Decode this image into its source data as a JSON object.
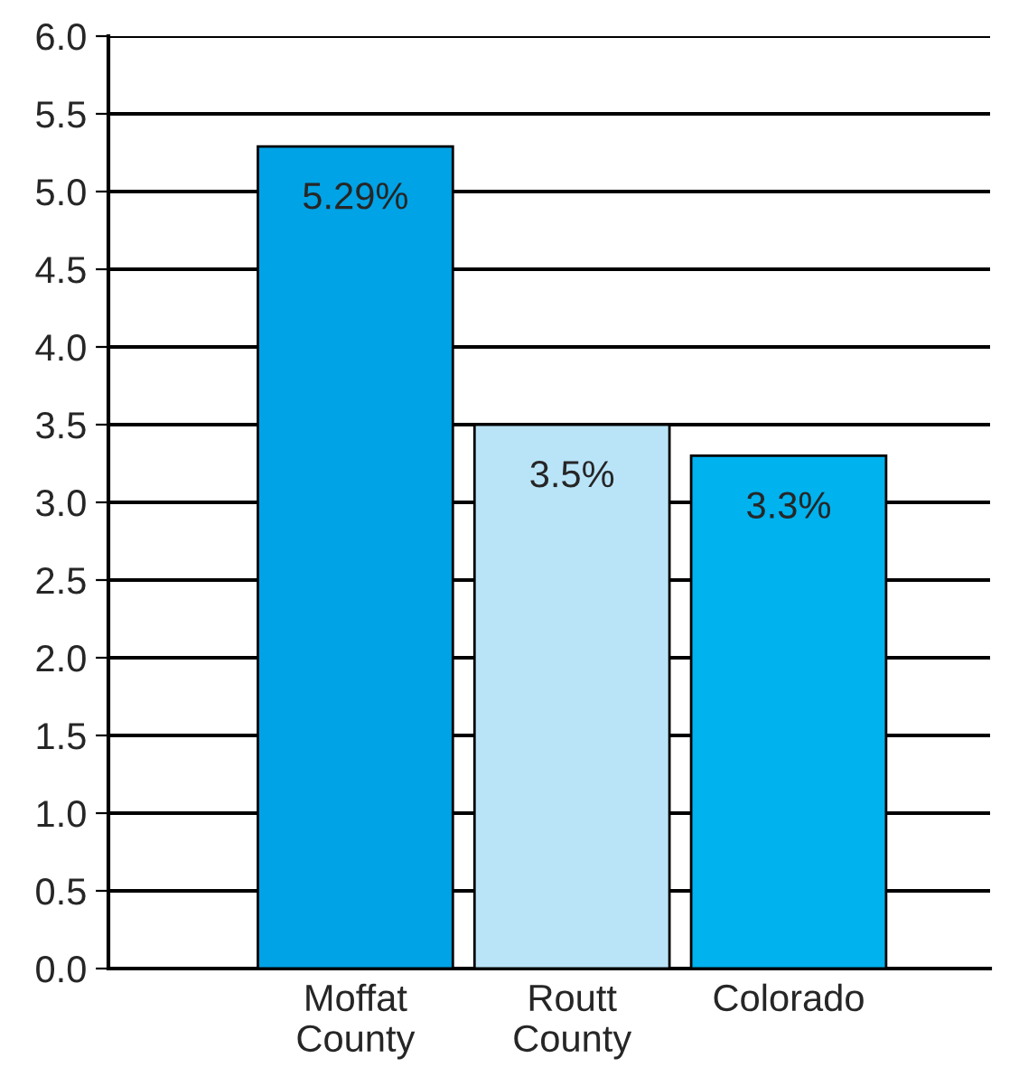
{
  "chart_data": {
    "type": "bar",
    "categories": [
      "Moffat\nCounty",
      "Routt\nCounty",
      "Colorado"
    ],
    "values": [
      5.29,
      3.5,
      3.3
    ],
    "colors": [
      "#00a3e6",
      "#b9e4f8",
      "#00b2ee"
    ],
    "value_labels": [
      "5.29%",
      "3.5%",
      "3.3%"
    ],
    "ylim": [
      0,
      6
    ],
    "yticks": [
      {
        "value": 0,
        "label": "0.0"
      },
      {
        "value": 0.5,
        "label": "0.5"
      },
      {
        "value": 1,
        "label": "1.0"
      },
      {
        "value": 1.5,
        "label": "1.5"
      },
      {
        "value": 2,
        "label": "2.0"
      },
      {
        "value": 2.5,
        "label": "2.5"
      },
      {
        "value": 3,
        "label": "3.0"
      },
      {
        "value": 3.5,
        "label": "3.5"
      },
      {
        "value": 4,
        "label": "4.0"
      },
      {
        "value": 4.5,
        "label": "4.5"
      },
      {
        "value": 5,
        "label": "5.0"
      },
      {
        "value": 5.5,
        "label": "5.5"
      },
      {
        "value": 6,
        "label": "6.0"
      }
    ],
    "grid": "y"
  }
}
